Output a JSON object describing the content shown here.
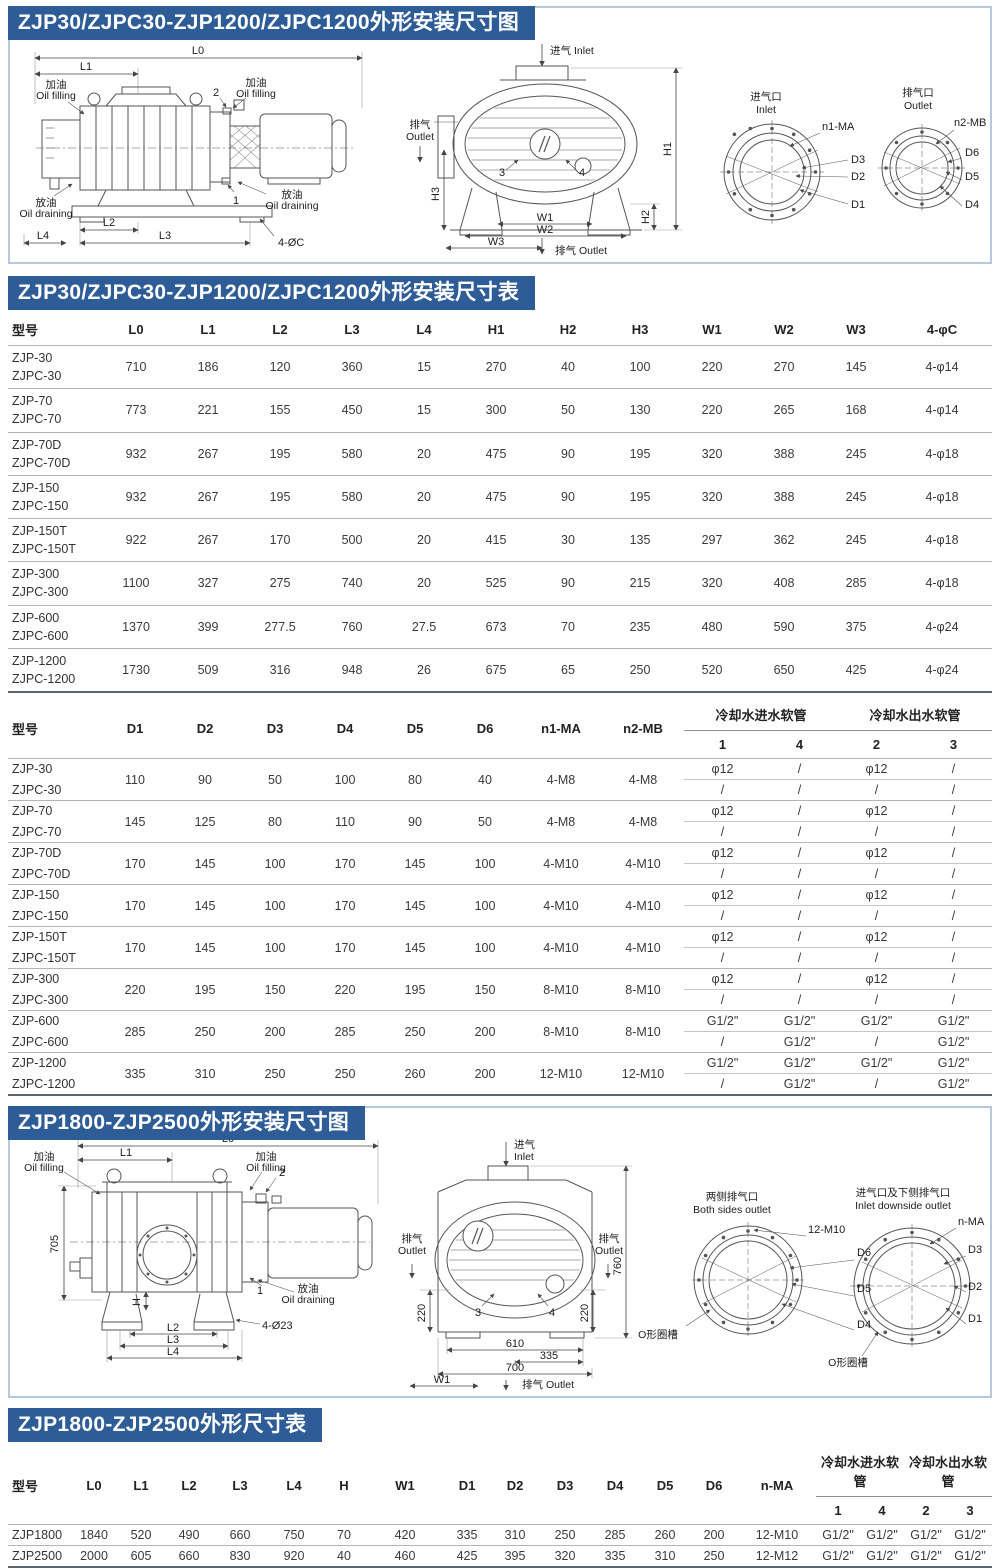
{
  "theme": {
    "banner_bg": "#2e5c96",
    "banner_text": "#ffffff",
    "box_border": "#b7c8da",
    "line_color": "#555555"
  },
  "common": {
    "oil_fill_cn": "加油",
    "oil_fill_en": "Oil filling",
    "oil_drain_cn": "放油",
    "oil_drain_en": "Oil draining",
    "inlet_cn": "进气",
    "inlet_en": "Inlet",
    "outlet_cn": "排气",
    "outlet_en": "Outlet"
  },
  "section1": {
    "title": "ZJP30/ZJPC30-ZJP1200/ZJPC1200外形安装尺寸图",
    "fig": {
      "L0": "L0",
      "L1": "L1",
      "L2": "L2",
      "L3": "L3",
      "L4": "L4",
      "H1": "H1",
      "H2": "H2",
      "H3": "H3",
      "W1": "W1",
      "W2": "W2",
      "W3": "W3",
      "n1": "1",
      "n2": "2",
      "n3": "3",
      "n4": "4",
      "bolt": "4-ØC",
      "inlet_port": "进气口",
      "outlet_port": "排气口",
      "n1ma": "n1-MA",
      "n2mb": "n2-MB",
      "D1": "D1",
      "D2": "D2",
      "D3": "D3",
      "D4": "D4",
      "D5": "D5",
      "D6": "D6"
    }
  },
  "section2": {
    "title": "ZJP30/ZJPC30-ZJP1200/ZJPC1200外形安装尺寸表",
    "table1": {
      "headers": [
        "型号",
        "L0",
        "L1",
        "L2",
        "L3",
        "L4",
        "H1",
        "H2",
        "H3",
        "W1",
        "W2",
        "W3",
        "4-φC"
      ],
      "rows": [
        {
          "models": [
            "ZJP-30",
            "ZJPC-30"
          ],
          "values": [
            "710",
            "186",
            "120",
            "360",
            "15",
            "270",
            "40",
            "100",
            "220",
            "270",
            "145",
            "4-φ14"
          ]
        },
        {
          "models": [
            "ZJP-70",
            "ZJPC-70"
          ],
          "values": [
            "773",
            "221",
            "155",
            "450",
            "15",
            "300",
            "50",
            "130",
            "220",
            "265",
            "168",
            "4-φ14"
          ]
        },
        {
          "models": [
            "ZJP-70D",
            "ZJPC-70D"
          ],
          "values": [
            "932",
            "267",
            "195",
            "580",
            "20",
            "475",
            "90",
            "195",
            "320",
            "388",
            "245",
            "4-φ18"
          ]
        },
        {
          "models": [
            "ZJP-150",
            "ZJPC-150"
          ],
          "values": [
            "932",
            "267",
            "195",
            "580",
            "20",
            "475",
            "90",
            "195",
            "320",
            "388",
            "245",
            "4-φ18"
          ]
        },
        {
          "models": [
            "ZJP-150T",
            "ZJPC-150T"
          ],
          "values": [
            "922",
            "267",
            "170",
            "500",
            "20",
            "415",
            "30",
            "135",
            "297",
            "362",
            "245",
            "4-φ18"
          ]
        },
        {
          "models": [
            "ZJP-300",
            "ZJPC-300"
          ],
          "values": [
            "1100",
            "327",
            "275",
            "740",
            "20",
            "525",
            "90",
            "215",
            "320",
            "408",
            "285",
            "4-φ18"
          ]
        },
        {
          "models": [
            "ZJP-600",
            "ZJPC-600"
          ],
          "values": [
            "1370",
            "399",
            "277.5",
            "760",
            "27.5",
            "673",
            "70",
            "235",
            "480",
            "590",
            "375",
            "4-φ24"
          ]
        },
        {
          "models": [
            "ZJP-1200",
            "ZJPC-1200"
          ],
          "values": [
            "1730",
            "509",
            "316",
            "948",
            "26",
            "675",
            "65",
            "250",
            "520",
            "650",
            "425",
            "4-φ24"
          ]
        }
      ]
    },
    "table2": {
      "headers": [
        "型号",
        "D1",
        "D2",
        "D3",
        "D4",
        "D5",
        "D6",
        "n1-MA",
        "n2-MB"
      ],
      "hose_in": "冷却水进水软管",
      "hose_out": "冷却水出水软管",
      "subheaders": [
        "1",
        "4",
        "2",
        "3"
      ],
      "rows": [
        {
          "models": [
            "ZJP-30",
            "ZJPC-30"
          ],
          "values": [
            "110",
            "90",
            "50",
            "100",
            "80",
            "40",
            "4-M8",
            "4-M8"
          ],
          "hose_top": [
            "φ12",
            "/",
            "φ12",
            "/"
          ],
          "hose_bottom": [
            "/",
            "/",
            "/",
            "/"
          ]
        },
        {
          "models": [
            "ZJP-70",
            "ZJPC-70"
          ],
          "values": [
            "145",
            "125",
            "80",
            "110",
            "90",
            "50",
            "4-M8",
            "4-M8"
          ],
          "hose_top": [
            "φ12",
            "/",
            "φ12",
            "/"
          ],
          "hose_bottom": [
            "/",
            "/",
            "/",
            "/"
          ]
        },
        {
          "models": [
            "ZJP-70D",
            "ZJPC-70D"
          ],
          "values": [
            "170",
            "145",
            "100",
            "170",
            "145",
            "100",
            "4-M10",
            "4-M10"
          ],
          "hose_top": [
            "φ12",
            "/",
            "φ12",
            "/"
          ],
          "hose_bottom": [
            "/",
            "/",
            "/",
            "/"
          ]
        },
        {
          "models": [
            "ZJP-150",
            "ZJPC-150"
          ],
          "values": [
            "170",
            "145",
            "100",
            "170",
            "145",
            "100",
            "4-M10",
            "4-M10"
          ],
          "hose_top": [
            "φ12",
            "/",
            "φ12",
            "/"
          ],
          "hose_bottom": [
            "/",
            "/",
            "/",
            "/"
          ]
        },
        {
          "models": [
            "ZJP-150T",
            "ZJPC-150T"
          ],
          "values": [
            "170",
            "145",
            "100",
            "170",
            "145",
            "100",
            "4-M10",
            "4-M10"
          ],
          "hose_top": [
            "φ12",
            "/",
            "φ12",
            "/"
          ],
          "hose_bottom": [
            "/",
            "/",
            "/",
            "/"
          ]
        },
        {
          "models": [
            "ZJP-300",
            "ZJPC-300"
          ],
          "values": [
            "220",
            "195",
            "150",
            "220",
            "195",
            "150",
            "8-M10",
            "8-M10"
          ],
          "hose_top": [
            "φ12",
            "/",
            "φ12",
            "/"
          ],
          "hose_bottom": [
            "/",
            "/",
            "/",
            "/"
          ]
        },
        {
          "models": [
            "ZJP-600",
            "ZJPC-600"
          ],
          "values": [
            "285",
            "250",
            "200",
            "285",
            "250",
            "200",
            "8-M10",
            "8-M10"
          ],
          "hose_top": [
            "G1/2\"",
            "G1/2\"",
            "G1/2\"",
            "G1/2\""
          ],
          "hose_bottom": [
            "/",
            "G1/2\"",
            "/",
            "G1/2\""
          ]
        },
        {
          "models": [
            "ZJP-1200",
            "ZJPC-1200"
          ],
          "values": [
            "335",
            "310",
            "250",
            "250",
            "260",
            "200",
            "12-M10",
            "12-M10"
          ],
          "hose_top": [
            "G1/2\"",
            "G1/2\"",
            "G1/2\"",
            "G1/2\""
          ],
          "hose_bottom": [
            "/",
            "G1/2\"",
            "/",
            "G1/2\""
          ]
        }
      ]
    }
  },
  "section3": {
    "title": "ZJP1800-ZJP2500外形安装尺寸图",
    "fig": {
      "L0": "L0",
      "L1": "L1",
      "L2": "L2",
      "L3": "L3",
      "L4": "L4",
      "H": "H",
      "d705": "705",
      "d760": "760",
      "d220": "220",
      "d610": "610",
      "d335": "335",
      "d700": "700",
      "W1": "W1",
      "n1": "1",
      "n2": "2",
      "n3": "3",
      "n4": "4",
      "bolt": "4-Ø23",
      "both_cn": "两侧排气口",
      "both_en": "Both sides outlet",
      "m1210": "12-M10",
      "oring": "O形圈槽",
      "inletdown_cn": "进气口及下侧排气口",
      "inletdown_en": "Inlet downside outlet",
      "nma": "n-MA",
      "D1": "D1",
      "D2": "D2",
      "D3": "D3",
      "D4": "D4",
      "D5": "D5",
      "D6": "D6"
    }
  },
  "section4": {
    "title": "ZJP1800-ZJP2500外形尺寸表",
    "table3": {
      "headers": [
        "型号",
        "L0",
        "L1",
        "L2",
        "L3",
        "L4",
        "H",
        "W1",
        "D1",
        "D2",
        "D3",
        "D4",
        "D5",
        "D6",
        "n-MA"
      ],
      "hose_in": "冷却水进水软管",
      "hose_out": "冷却水出水软管",
      "subheaders": [
        "1",
        "4",
        "2",
        "3"
      ],
      "rows": [
        {
          "model": "ZJP1800",
          "values": [
            "1840",
            "520",
            "490",
            "660",
            "750",
            "70",
            "420",
            "335",
            "310",
            "250",
            "285",
            "260",
            "200",
            "12-M10"
          ],
          "hoses": [
            "G1/2\"",
            "G1/2\"",
            "G1/2\"",
            "G1/2\""
          ]
        },
        {
          "model": "ZJP2500",
          "values": [
            "2000",
            "605",
            "660",
            "830",
            "920",
            "40",
            "460",
            "425",
            "395",
            "320",
            "335",
            "310",
            "250",
            "12-M12"
          ],
          "hoses": [
            "G1/2\"",
            "G1/2\"",
            "G1/2\"",
            "G1/2\""
          ]
        }
      ]
    }
  }
}
